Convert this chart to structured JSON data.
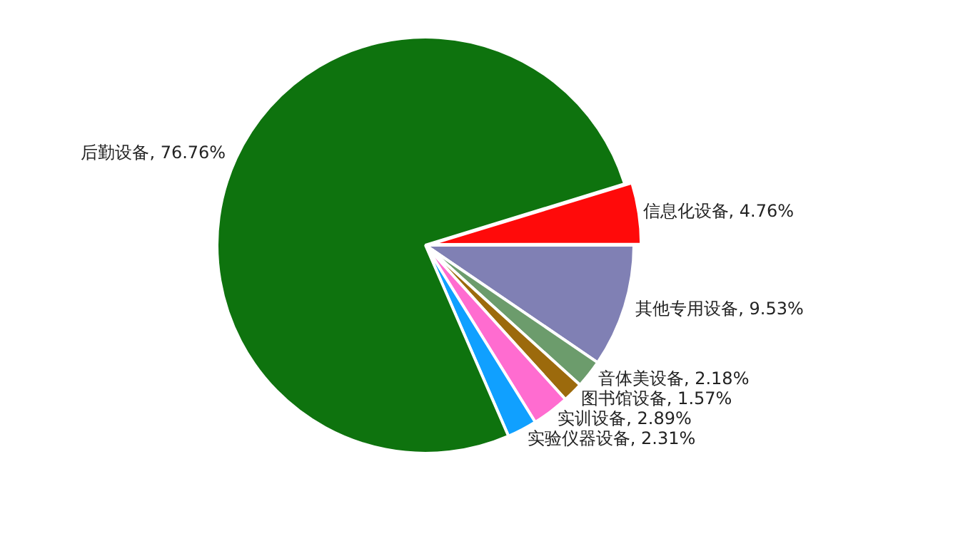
{
  "chart_data": {
    "type": "pie",
    "categories": [
      "信息化设备",
      "其他专用设备",
      "音体美设备",
      "图书馆设备",
      "实训设备",
      "实验仪器设备",
      "后勤设备"
    ],
    "values": [
      4.76,
      9.53,
      2.18,
      1.57,
      2.89,
      2.31,
      76.76
    ],
    "colors": [
      "#ff0a0a",
      "#8080b4",
      "#6c9c6c",
      "#9c6a0c",
      "#ff6cd0",
      "#10a0ff",
      "#0e730e"
    ],
    "value_labels": [
      "4.76%",
      "9.53%",
      "2.18%",
      "1.57%",
      "2.89%",
      "2.31%",
      "76.76%"
    ],
    "legend": false
  }
}
